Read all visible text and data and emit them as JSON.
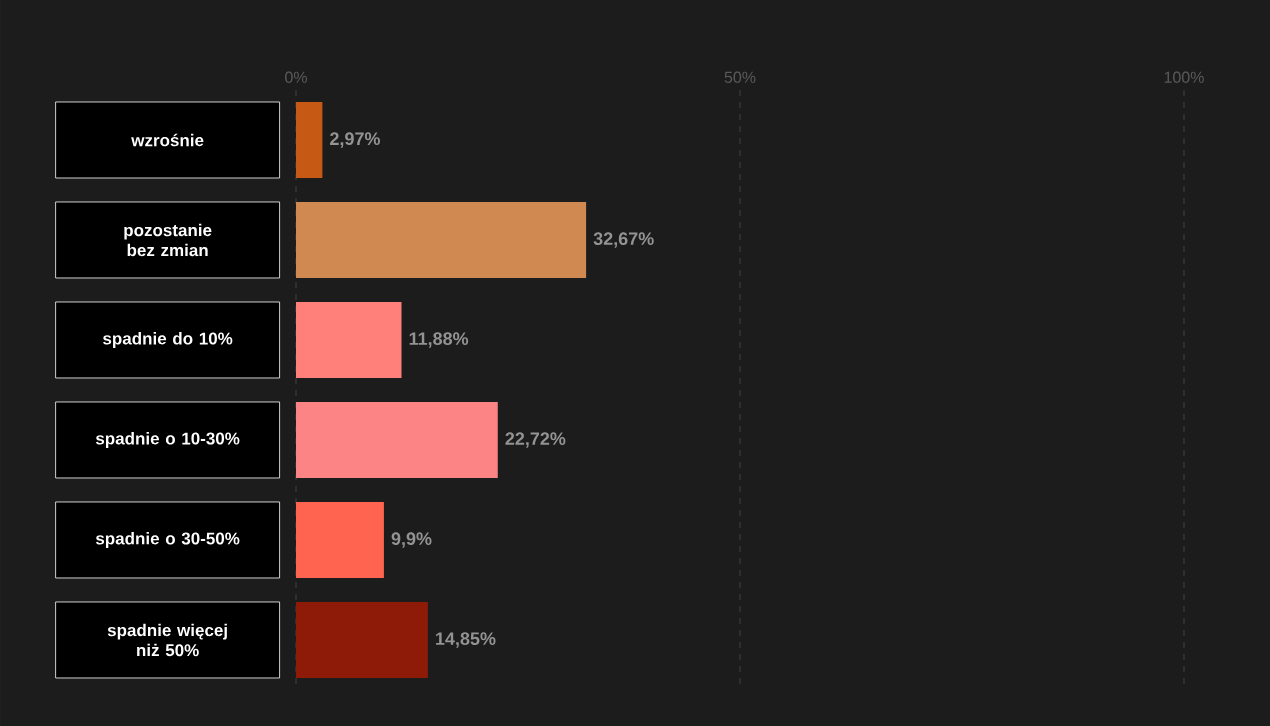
{
  "chart_data": {
    "type": "bar",
    "orientation": "horizontal",
    "categories": [
      "wzrośnie",
      "pozostanie bez zmian",
      "spadnie do 10%",
      "spadnie o 10-30%",
      "spadnie o 30-50%",
      "spadnie więcej niż 50%"
    ],
    "values": [
      2.97,
      32.67,
      11.88,
      22.72,
      9.9,
      14.85
    ],
    "value_labels": [
      "2,97%",
      "32,67%",
      "11,88%",
      "22,72%",
      "9,9%",
      "14,85%"
    ],
    "colors": [
      "#c65a14",
      "#d08950",
      "#ff7f7a",
      "#fc8484",
      "#ff6450",
      "#8e1a08"
    ],
    "xlim": [
      0,
      100
    ],
    "xticks": [
      {
        "value": 0,
        "label": "0%"
      },
      {
        "value": 50,
        "label": "50%"
      },
      {
        "value": 100,
        "label": "100%"
      }
    ],
    "grid": "x"
  }
}
